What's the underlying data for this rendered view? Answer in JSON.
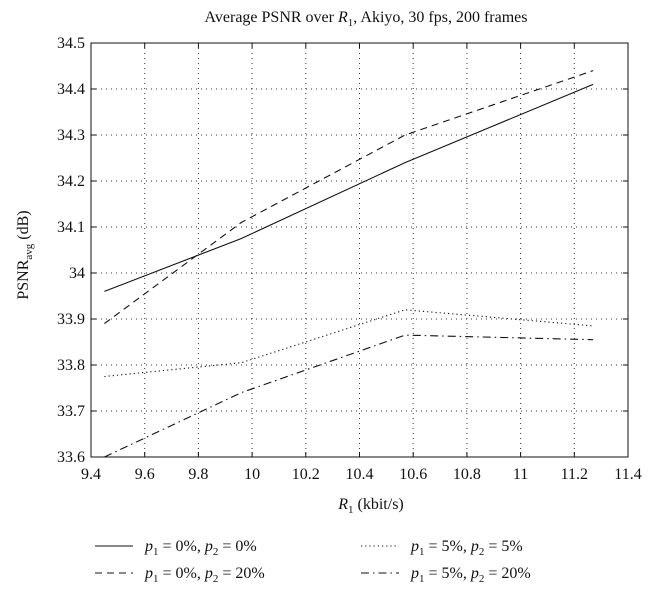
{
  "chart_data": {
    "type": "line",
    "title": {
      "prefix": "Average PSNR over ",
      "var": "R",
      "sub": "1",
      "suffix": ", Akiyo, 30 fps, 200 frames"
    },
    "xlabel": {
      "var": "R",
      "sub": "1",
      "suffix": " (kbit/s)"
    },
    "ylabel": {
      "main": "PSNR",
      "sub": "avg",
      "suffix": " (dB)"
    },
    "xlim": [
      9.4,
      11.4
    ],
    "ylim": [
      33.6,
      34.5
    ],
    "xticks": [
      "9.4",
      "9.6",
      "9.8",
      "10",
      "10.2",
      "10.4",
      "10.6",
      "10.8",
      "11",
      "11.2",
      "11.4"
    ],
    "yticks": [
      "33.6",
      "33.7",
      "33.8",
      "33.9",
      "34",
      "34.1",
      "34.2",
      "34.3",
      "34.4",
      "34.5"
    ],
    "grid": true,
    "legend_position": "bottom",
    "series": [
      {
        "legend": {
          "a": "p",
          "asub": "1",
          "aval": " = 0%, ",
          "b": "p",
          "bsub": "2",
          "bval": " = 0%"
        },
        "dash": "solid",
        "x": [
          9.45,
          9.96,
          10.57,
          11.27
        ],
        "y": [
          33.96,
          34.075,
          34.24,
          34.41
        ]
      },
      {
        "legend": {
          "a": "p",
          "asub": "1",
          "aval": " = 0%, ",
          "b": "p",
          "bsub": "2",
          "bval": " = 20%"
        },
        "dash": "dashed",
        "x": [
          9.45,
          9.96,
          10.57,
          11.27
        ],
        "y": [
          33.89,
          34.11,
          34.3,
          34.44
        ]
      },
      {
        "legend": {
          "a": "p",
          "asub": "1",
          "aval": " = 5%, ",
          "b": "p",
          "bsub": "2",
          "bval": " = 5%"
        },
        "dash": "dotted",
        "x": [
          9.45,
          9.96,
          10.57,
          11.27
        ],
        "y": [
          33.775,
          33.805,
          33.92,
          33.885
        ]
      },
      {
        "legend": {
          "a": "p",
          "asub": "1",
          "aval": " = 5%, ",
          "b": "p",
          "bsub": "2",
          "bval": " = 20%"
        },
        "dash": "dashdot",
        "x": [
          9.45,
          9.96,
          10.57,
          11.27
        ],
        "y": [
          33.6,
          33.74,
          33.865,
          33.855
        ]
      }
    ]
  }
}
